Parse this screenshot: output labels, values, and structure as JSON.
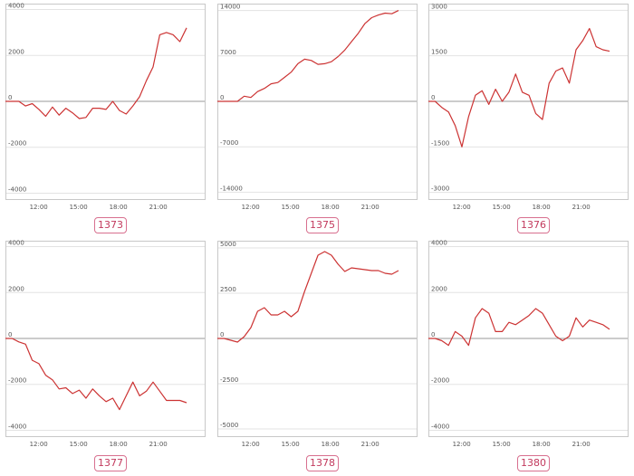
{
  "colors": {
    "line": "#cc3333",
    "grid": "#e3e3e3",
    "zero": "#9a9a9a",
    "frame": "#c8c8c8",
    "badge": "#c2395d"
  },
  "chart_data": [
    {
      "type": "line",
      "label": "1373",
      "yticks": [
        4000,
        2000,
        0,
        -2000,
        -4000
      ],
      "ylim": [
        -4100,
        4100
      ],
      "xticks": [
        "12:00",
        "15:00",
        "18:00",
        "21:00"
      ],
      "xtick_positions": [
        12,
        15,
        18,
        21
      ],
      "xlim": [
        9.5,
        24.5
      ],
      "x": [
        9.5,
        10,
        10.5,
        11,
        11.5,
        12,
        12.5,
        13,
        13.5,
        14,
        14.5,
        15,
        15.5,
        16,
        16.5,
        17,
        17.5,
        18,
        18.5,
        19,
        19.5,
        20,
        20.5,
        21,
        21.5,
        22,
        22.5,
        23
      ],
      "y": [
        0,
        0,
        0,
        -200,
        -100,
        -350,
        -650,
        -250,
        -600,
        -300,
        -500,
        -750,
        -700,
        -300,
        -300,
        -350,
        0,
        -400,
        -550,
        -200,
        200,
        900,
        1500,
        2900,
        3000,
        2900,
        2600,
        3200
      ]
    },
    {
      "type": "line",
      "label": "1375",
      "yticks": [
        14000,
        7000,
        0,
        -7000,
        -14000
      ],
      "ylim": [
        -14500,
        14500
      ],
      "xticks": [
        "12:00",
        "15:00",
        "18:00",
        "21:00"
      ],
      "xtick_positions": [
        12,
        15,
        18,
        21
      ],
      "xlim": [
        9.5,
        24.5
      ],
      "x": [
        9.5,
        10,
        10.5,
        11,
        11.5,
        12,
        12.5,
        13,
        13.5,
        14,
        14.5,
        15,
        15.5,
        16,
        16.5,
        17,
        17.5,
        18,
        18.5,
        19,
        19.5,
        20,
        20.5,
        21,
        21.5,
        22,
        22.5,
        23
      ],
      "y": [
        0,
        0,
        0,
        0,
        800,
        600,
        1500,
        2000,
        2700,
        2900,
        3700,
        4500,
        5800,
        6500,
        6300,
        5700,
        5800,
        6100,
        6900,
        7900,
        9200,
        10500,
        12000,
        12900,
        13300,
        13600,
        13500,
        14000
      ]
    },
    {
      "type": "line",
      "label": "1376",
      "yticks": [
        3000,
        1500,
        0,
        -1500,
        -3000
      ],
      "ylim": [
        -3100,
        3100
      ],
      "xticks": [
        "12:00",
        "15:00",
        "18:00",
        "21:00"
      ],
      "xtick_positions": [
        12,
        15,
        18,
        21
      ],
      "xlim": [
        9.5,
        24.5
      ],
      "x": [
        9.5,
        10,
        10.5,
        11,
        11.5,
        12,
        12.5,
        13,
        13.5,
        14,
        14.5,
        15,
        15.5,
        16,
        16.5,
        17,
        17.5,
        18,
        18.5,
        19,
        19.5,
        20,
        20.5,
        21,
        21.5,
        22,
        22.5,
        23
      ],
      "y": [
        0,
        0,
        -200,
        -350,
        -800,
        -1500,
        -500,
        200,
        350,
        -100,
        400,
        0,
        300,
        900,
        300,
        200,
        -400,
        -600,
        600,
        1000,
        1100,
        600,
        1700,
        2000,
        2400,
        1800,
        1700,
        1650
      ]
    },
    {
      "type": "line",
      "label": "1377",
      "yticks": [
        4000,
        2000,
        0,
        -2000,
        -4000
      ],
      "ylim": [
        -4100,
        4100
      ],
      "xticks": [
        "12:00",
        "15:00",
        "18:00",
        "21:00"
      ],
      "xtick_positions": [
        12,
        15,
        18,
        21
      ],
      "xlim": [
        9.5,
        24.5
      ],
      "x": [
        9.5,
        10,
        10.5,
        11,
        11.5,
        12,
        12.5,
        13,
        13.5,
        14,
        14.5,
        15,
        15.5,
        16,
        16.5,
        17,
        17.5,
        18,
        18.5,
        19,
        19.5,
        20,
        20.5,
        21,
        21.5,
        22,
        22.5,
        23
      ],
      "y": [
        0,
        0,
        -150,
        -250,
        -950,
        -1100,
        -1600,
        -1800,
        -2200,
        -2150,
        -2400,
        -2250,
        -2600,
        -2200,
        -2500,
        -2750,
        -2600,
        -3100,
        -2500,
        -1900,
        -2500,
        -2300,
        -1900,
        -2300,
        -2700,
        -2700,
        -2700,
        -2800
      ]
    },
    {
      "type": "line",
      "label": "1378",
      "yticks": [
        5000,
        2500,
        0,
        -2500,
        -5000
      ],
      "ylim": [
        -5200,
        5200
      ],
      "xticks": [
        "12:00",
        "15:00",
        "18:00",
        "21:00"
      ],
      "xtick_positions": [
        12,
        15,
        18,
        21
      ],
      "xlim": [
        9.5,
        24.5
      ],
      "x": [
        9.5,
        10,
        10.5,
        11,
        11.5,
        12,
        12.5,
        13,
        13.5,
        14,
        14.5,
        15,
        15.5,
        16,
        16.5,
        17,
        17.5,
        18,
        18.5,
        19,
        19.5,
        20,
        20.5,
        21,
        21.5,
        22,
        22.5,
        23
      ],
      "y": [
        0,
        0,
        -100,
        -200,
        100,
        600,
        1500,
        1700,
        1300,
        1300,
        1500,
        1200,
        1500,
        2600,
        3600,
        4600,
        4800,
        4600,
        4100,
        3700,
        3900,
        3850,
        3800,
        3750,
        3750,
        3600,
        3550,
        3750
      ]
    },
    {
      "type": "line",
      "label": "1380",
      "yticks": [
        4000,
        2000,
        0,
        -2000,
        -4000
      ],
      "ylim": [
        -4100,
        4100
      ],
      "xticks": [
        "12:00",
        "15:00",
        "18:00",
        "21:00"
      ],
      "xtick_positions": [
        12,
        15,
        18,
        21
      ],
      "xlim": [
        9.5,
        24.5
      ],
      "x": [
        9.5,
        10,
        10.5,
        11,
        11.5,
        12,
        12.5,
        13,
        13.5,
        14,
        14.5,
        15,
        15.5,
        16,
        16.5,
        17,
        17.5,
        18,
        18.5,
        19,
        19.5,
        20,
        20.5,
        21,
        21.5,
        22,
        22.5,
        23
      ],
      "y": [
        0,
        0,
        -100,
        -300,
        300,
        100,
        -300,
        900,
        1300,
        1100,
        300,
        300,
        700,
        600,
        800,
        1000,
        1300,
        1100,
        600,
        100,
        -100,
        100,
        900,
        500,
        800,
        700,
        600,
        400
      ]
    }
  ]
}
